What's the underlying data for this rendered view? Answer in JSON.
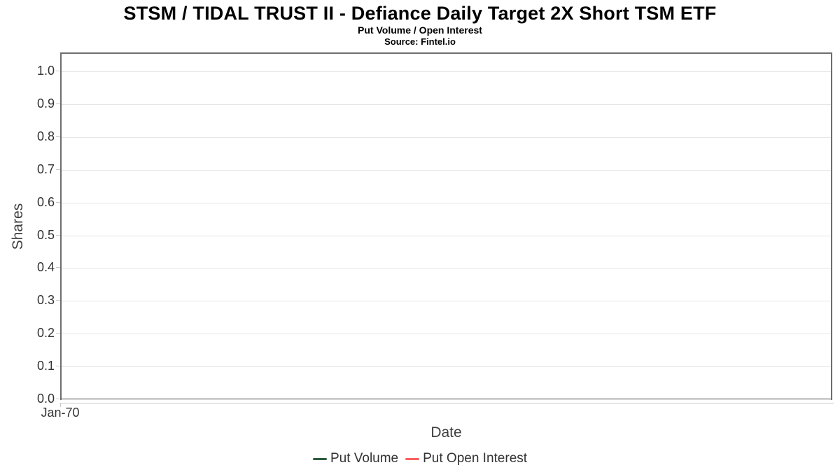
{
  "colors": {
    "background": "#ffffff",
    "title_text": "#000000",
    "axis_text": "#333333",
    "axis_title_text": "#3e3e3e",
    "plot_border": "#6e6e6e",
    "gridline": "#e6e6e6",
    "tick": "#c9c9c9"
  },
  "chart_data": {
    "type": "line",
    "title": "STSM / TIDAL TRUST II - Defiance Daily Target 2X Short TSM ETF",
    "subtitle": "Put Volume / Open Interest",
    "source": "Source: Fintel.io",
    "xlabel": "Date",
    "ylabel": "Shares",
    "x_tick_labels": [
      "Jan-70"
    ],
    "y_tick_labels": [
      "0.0",
      "0.1",
      "0.2",
      "0.3",
      "0.4",
      "0.5",
      "0.6",
      "0.7",
      "0.8",
      "0.9",
      "1.0"
    ],
    "y_tick_values": [
      0,
      0.1,
      0.2,
      0.3,
      0.4,
      0.5,
      0.6,
      0.7,
      0.8,
      0.9,
      1.0
    ],
    "ylim": [
      0,
      1.06
    ],
    "grid": true,
    "legend_position": "bottom-center",
    "plot_empty": true,
    "series": [
      {
        "name": "Put Volume",
        "color": "#2c5d3f",
        "points": []
      },
      {
        "name": "Put Open Interest",
        "color": "#fa6161",
        "points": []
      }
    ]
  }
}
